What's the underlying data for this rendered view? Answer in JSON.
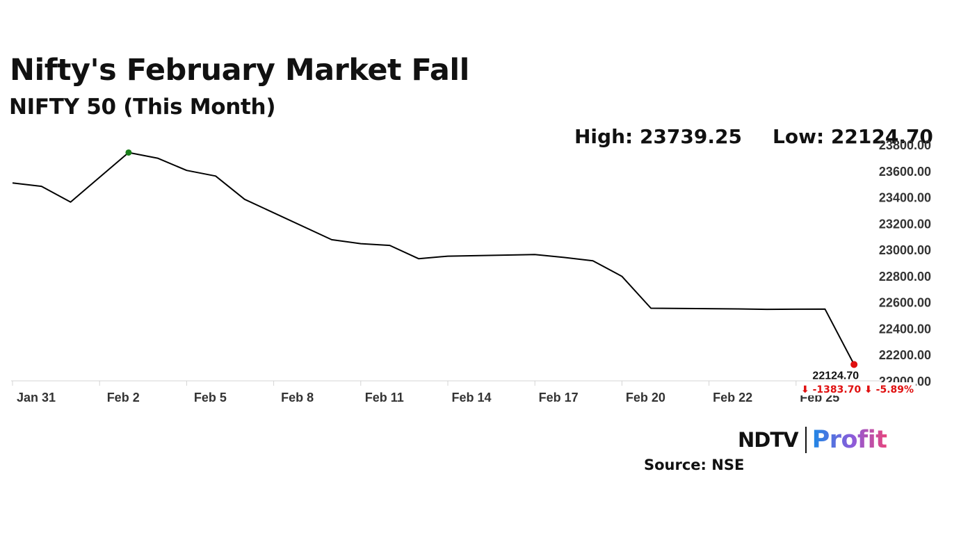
{
  "header": {
    "title": "Nifty's February Market Fall",
    "subtitle": "NIFTY 50 (This Month)"
  },
  "stats": {
    "high_label": "High: 23739.25",
    "low_label": "Low: 22124.70"
  },
  "chart_data": {
    "type": "line",
    "title": "Nifty's February Market Fall",
    "subtitle": "NIFTY 50 (This Month)",
    "x_tick_labels": [
      "Jan 31",
      "Feb 2",
      "Feb 5",
      "Feb 8",
      "Feb 11",
      "Feb 14",
      "Feb 17",
      "Feb 20",
      "Feb 22",
      "Feb 25"
    ],
    "y_tick_labels": [
      "22000.00",
      "22200.00",
      "22400.00",
      "22600.00",
      "22800.00",
      "23000.00",
      "23200.00",
      "23400.00",
      "23600.00",
      "23800.00"
    ],
    "ylim": [
      22000,
      23800
    ],
    "y_axis_position": "right",
    "grid": false,
    "series": [
      {
        "color": "#000000",
        "x": [
          "2025-01-30",
          "2025-01-31",
          "2025-02-01",
          "2025-02-03",
          "2025-02-04",
          "2025-02-05",
          "2025-02-06",
          "2025-02-07",
          "2025-02-10",
          "2025-02-11",
          "2025-02-12",
          "2025-02-13",
          "2025-02-14",
          "2025-02-17",
          "2025-02-18",
          "2025-02-19",
          "2025-02-20",
          "2025-02-21",
          "2025-02-24",
          "2025-02-25",
          "2025-02-27",
          "2025-02-28"
        ],
        "values": [
          23508,
          23482,
          23362,
          23739.25,
          23696,
          23603,
          23560,
          23383,
          23075,
          23045,
          23032,
          22930,
          22950,
          22962,
          22940,
          22915,
          22796,
          22553,
          22548,
          22545,
          22547,
          22124.7
        ]
      }
    ],
    "annotations": {
      "high": {
        "value": 23739.25,
        "color": "#1a7f1a"
      },
      "low": {
        "value": 22124.7,
        "label": "22124.70",
        "color": "#e01010"
      },
      "change_label": "⬇ -1383.70 ⬇ -5.89%",
      "change_color": "#e01010"
    }
  },
  "branding": {
    "logo_ndtv": "NDTV",
    "logo_profit": "Profit"
  },
  "footer": {
    "source": "Source: NSE"
  }
}
